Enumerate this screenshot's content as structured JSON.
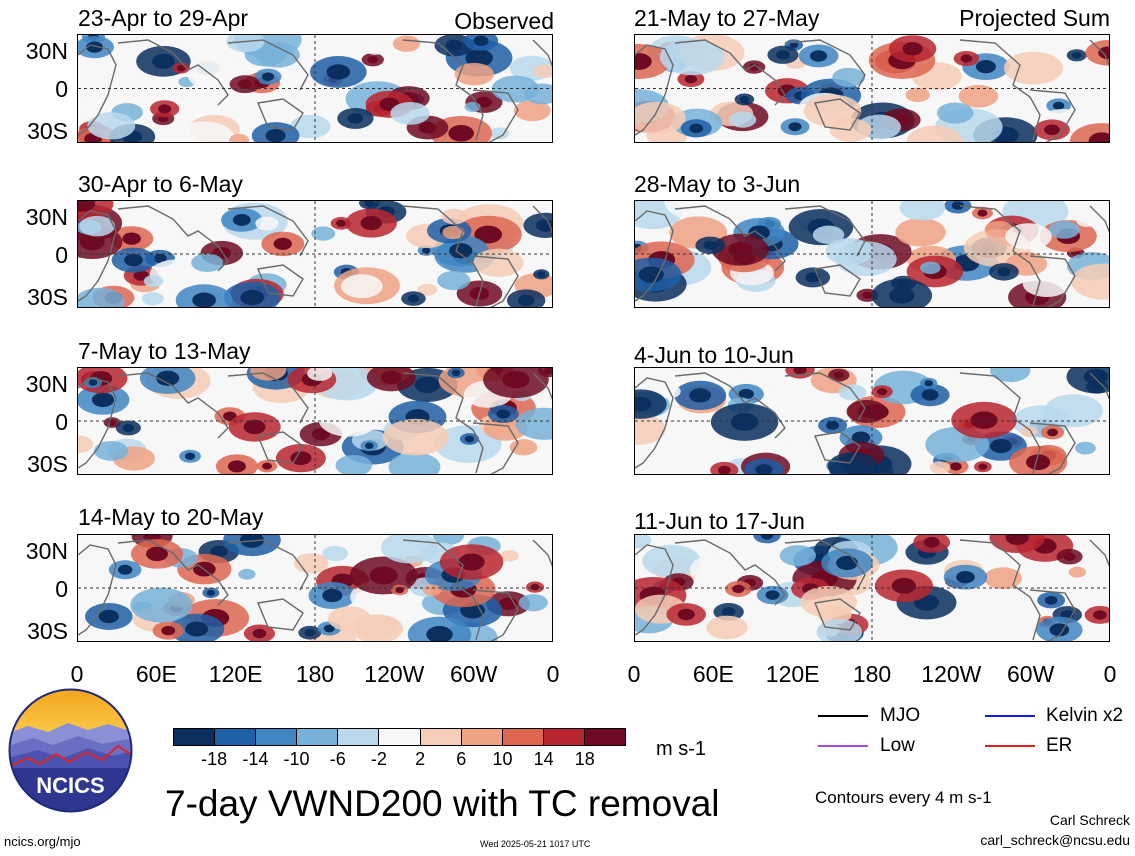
{
  "observed_label": "Observed",
  "projected_label": "Projected Sum",
  "panels_left": [
    {
      "title": "23-Apr to 29-Apr"
    },
    {
      "title": "30-Apr to 6-May"
    },
    {
      "title": "7-May to 13-May"
    },
    {
      "title": "14-May to 20-May"
    }
  ],
  "panels_right": [
    {
      "title": "21-May to 27-May"
    },
    {
      "title": "28-May to 3-Jun"
    },
    {
      "title": "4-Jun to 10-Jun"
    },
    {
      "title": "11-Jun to 17-Jun"
    }
  ],
  "lat_labels": [
    "30N",
    "0",
    "30S"
  ],
  "lon_labels": [
    "0",
    "60E",
    "120E",
    "180",
    "120W",
    "60W",
    "0"
  ],
  "colorbar": {
    "ticks": [
      "-18",
      "-14",
      "-10",
      "-6",
      "-2",
      "2",
      "6",
      "10",
      "14",
      "18"
    ],
    "colors": [
      "#0b2f5e",
      "#1f5fa6",
      "#3f86c2",
      "#77b1d9",
      "#b9d8ec",
      "#f7f7f7",
      "#f6cdb6",
      "#efa284",
      "#dd6651",
      "#b82630",
      "#6f0a22"
    ],
    "units": "m s-1"
  },
  "legend": {
    "mjo": "MJO",
    "kelvin": "Kelvin x2",
    "low": "Low",
    "er": "ER",
    "mjo_color": "#000000",
    "kelvin_color": "#1a1ae6",
    "low_color": "#a04be0",
    "er_color": "#e02020"
  },
  "logo_text": "NCICS",
  "main_title": "7-day VWND200 with TC removal",
  "contour_note": "Contours every 4 m s-1",
  "author": "Carl Schreck",
  "email": "carl_schreck@ncsu.edu",
  "website": "ncics.org/mjo",
  "timestamp": "Wed 2025-05-21 1017 UTC",
  "chart_data": {
    "type": "heatmap",
    "variable": "VWND200",
    "units": "m s-1",
    "contour_levels": [
      -18,
      -14,
      -10,
      -6,
      -2,
      2,
      6,
      10,
      14,
      18
    ],
    "lat_ticks": [
      "30N",
      "0",
      "30S"
    ],
    "lon_ticks": [
      "0",
      "60E",
      "120E",
      "180",
      "120W",
      "60W",
      "0"
    ],
    "observed_periods": [
      "23-Apr to 29-Apr",
      "30-Apr to 6-May",
      "7-May to 13-May",
      "14-May to 20-May"
    ],
    "projected_periods": [
      "21-May to 27-May",
      "28-May to 3-Jun",
      "4-Jun to 10-Jun",
      "11-Jun to 17-Jun"
    ]
  }
}
